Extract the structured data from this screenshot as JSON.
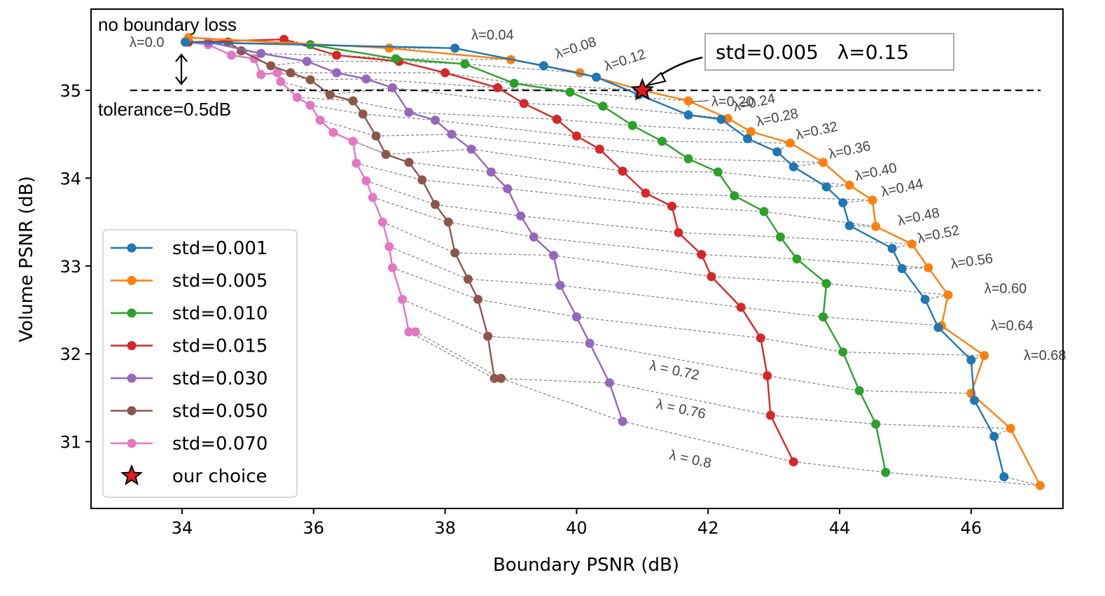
{
  "chart_data": {
    "type": "line",
    "xlabel": "Boundary PSNR (dB)",
    "ylabel": "Volume PSNR (dB)",
    "xlim": [
      32.6,
      47.3
    ],
    "ylim": [
      30.25,
      35.95
    ],
    "xticks": [
      "34",
      "36",
      "38",
      "40",
      "42",
      "44",
      "46"
    ],
    "yticks": [
      "31",
      "32",
      "33",
      "34",
      "35"
    ],
    "grid": false,
    "legend_position": "lower-left",
    "series": [
      {
        "name": "std=0.001",
        "color": "#1f77b4",
        "x": [
          34.05,
          38.15,
          39.5,
          40.3,
          40.95,
          41.7,
          42.2,
          42.6,
          43.05,
          43.3,
          43.8,
          44.05,
          44.15,
          44.8,
          44.95,
          45.3,
          45.5,
          46,
          46.05,
          46.35,
          46.5
        ],
        "y": [
          35.55,
          35.48,
          35.28,
          35.15,
          34.95,
          34.72,
          34.67,
          34.45,
          34.3,
          34.13,
          33.9,
          33.72,
          33.46,
          33.2,
          32.97,
          32.62,
          32.3,
          31.93,
          31.47,
          31.06,
          30.6
        ]
      },
      {
        "name": "std=0.005",
        "color": "#ff7f0e",
        "x": [
          34.1,
          37.15,
          39,
          40.05,
          41,
          41.7,
          42.3,
          42.65,
          43.25,
          43.75,
          44.15,
          44.5,
          44.55,
          45.1,
          45.35,
          45.65,
          45.55,
          46.2,
          46,
          46.6,
          47.05
        ],
        "y": [
          35.6,
          35.48,
          35.35,
          35.2,
          35,
          34.88,
          34.68,
          34.53,
          34.4,
          34.18,
          33.92,
          33.75,
          33.45,
          33.25,
          32.98,
          32.67,
          32.32,
          31.98,
          31.55,
          31.15,
          30.5
        ]
      },
      {
        "name": "std=0.010",
        "color": "#2ca02c",
        "x": [
          34.05,
          35.95,
          37.25,
          38.3,
          39.05,
          39.9,
          40.4,
          40.85,
          41.3,
          41.7,
          42.15,
          42.4,
          42.85,
          43.1,
          43.35,
          43.8,
          43.75,
          44.05,
          44.3,
          44.55,
          44.7
        ],
        "y": [
          35.55,
          35.52,
          35.36,
          35.3,
          35.08,
          34.98,
          34.82,
          34.6,
          34.42,
          34.22,
          34.07,
          33.8,
          33.62,
          33.33,
          33.08,
          32.8,
          32.42,
          32.02,
          31.58,
          31.2,
          30.65
        ]
      },
      {
        "name": "std=0.015",
        "color": "#d62728",
        "x": [
          34.1,
          35.55,
          36.35,
          37.3,
          38,
          38.8,
          39.2,
          39.7,
          40,
          40.35,
          40.7,
          41.05,
          41.45,
          41.55,
          41.9,
          42.05,
          42.5,
          42.8,
          42.9,
          42.95,
          43.3
        ],
        "y": [
          35.55,
          35.58,
          35.4,
          35.33,
          35.2,
          35.03,
          34.85,
          34.67,
          34.48,
          34.33,
          34.08,
          33.83,
          33.68,
          33.38,
          33.13,
          32.88,
          32.53,
          32.18,
          31.75,
          31.3,
          30.77
        ]
      },
      {
        "name": "std=0.030",
        "color": "#9467bd",
        "x": [
          34.05,
          34.4,
          35.2,
          35.9,
          36.35,
          36.8,
          37.2,
          37.45,
          37.85,
          38.1,
          38.4,
          38.7,
          38.95,
          39.15,
          39.35,
          39.65,
          39.75,
          40,
          40.2,
          40.5,
          40.7
        ],
        "y": [
          35.55,
          35.55,
          35.42,
          35.33,
          35.2,
          35.13,
          35.03,
          34.75,
          34.66,
          34.5,
          34.33,
          34.07,
          33.88,
          33.57,
          33.33,
          33.12,
          32.78,
          32.42,
          32.12,
          31.67,
          31.23
        ]
      },
      {
        "name": "std=0.050",
        "color": "#8c564b",
        "x": [
          34.05,
          34.7,
          34.9,
          35.35,
          35.65,
          35.95,
          36.25,
          36.6,
          36.75,
          36.95,
          37.1,
          37.45,
          37.65,
          37.85,
          38.05,
          38.15,
          38.35,
          38.5,
          38.65,
          38.75,
          38.85
        ],
        "y": [
          35.55,
          35.55,
          35.45,
          35.28,
          35.2,
          35.12,
          34.95,
          34.88,
          34.73,
          34.48,
          34.27,
          34.18,
          33.98,
          33.7,
          33.5,
          33.15,
          32.85,
          32.62,
          32.2,
          31.72,
          31.72
        ]
      },
      {
        "name": "std=0.070",
        "color": "#e377c2",
        "x": [
          34.05,
          34.4,
          34.75,
          35.1,
          35.2,
          35.45,
          35.5,
          35.75,
          35.95,
          36.1,
          36.3,
          36.6,
          36.65,
          36.8,
          36.9,
          37.05,
          37.15,
          37.2,
          37.35,
          37.45,
          37.55
        ],
        "y": [
          35.55,
          35.52,
          35.4,
          35.36,
          35.18,
          35.2,
          35.1,
          34.92,
          34.83,
          34.66,
          34.52,
          34.42,
          34.17,
          33.97,
          33.78,
          33.5,
          33.22,
          32.98,
          32.62,
          32.25,
          32.25
        ]
      }
    ],
    "our_choice": {
      "label": "our choice",
      "x": 41,
      "y": 35,
      "color": "#e41a1c"
    },
    "tolerance_line_y": 35,
    "annotations": {
      "no_boundary_loss": "no boundary loss",
      "tolerance": "tolerance=0.5dB",
      "lambda_start": "λ=0.0",
      "choice_box": "std=0.005   λ=0.15"
    },
    "lambda_labels": [
      {
        "text": "λ=0.04",
        "x": 38.4,
        "y": 35.58,
        "angle": 0
      },
      {
        "text": "λ=0.08",
        "x": 39.7,
        "y": 35.36,
        "angle": -18
      },
      {
        "text": "λ=0.12",
        "x": 40.45,
        "y": 35.22,
        "angle": -18
      },
      {
        "text": "λ=0.20",
        "x": 42.05,
        "y": 34.82,
        "angle": 0
      },
      {
        "text": "λ=0.24",
        "x": 42.4,
        "y": 34.76,
        "angle": -12
      },
      {
        "text": "λ=0.28",
        "x": 42.75,
        "y": 34.59,
        "angle": -12
      },
      {
        "text": "λ=0.32",
        "x": 43.35,
        "y": 34.44,
        "angle": -12
      },
      {
        "text": "λ=0.36",
        "x": 43.85,
        "y": 34.22,
        "angle": -12
      },
      {
        "text": "λ=0.40",
        "x": 44.25,
        "y": 33.97,
        "angle": -12
      },
      {
        "text": "λ=0.44",
        "x": 44.65,
        "y": 33.79,
        "angle": -12
      },
      {
        "text": "λ=0.48",
        "x": 44.9,
        "y": 33.46,
        "angle": -12
      },
      {
        "text": "λ=0.52",
        "x": 45.2,
        "y": 33.26,
        "angle": -12
      },
      {
        "text": "λ=0.56",
        "x": 45.7,
        "y": 32.97,
        "angle": -8
      },
      {
        "text": "λ=0.60",
        "x": 46.2,
        "y": 32.69,
        "angle": 0
      },
      {
        "text": "λ=0.64",
        "x": 46.3,
        "y": 32.27,
        "angle": 0
      },
      {
        "text": "λ=0.68",
        "x": 46.8,
        "y": 31.93,
        "angle": 0
      },
      {
        "text": "λ = 0.72",
        "x": 41.1,
        "y": 31.82,
        "angle": 12
      },
      {
        "text": "λ = 0.76",
        "x": 41.2,
        "y": 31.38,
        "angle": 12
      },
      {
        "text": "λ = 0.8",
        "x": 41.4,
        "y": 30.8,
        "angle": 12
      }
    ]
  }
}
